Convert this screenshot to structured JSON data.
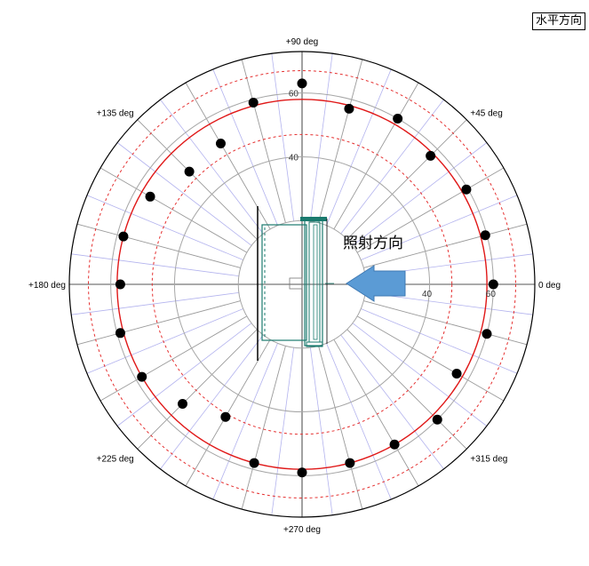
{
  "chart_data": {
    "type": "polar-scatter",
    "title": "水平方向",
    "direction_label": "照射方向",
    "angle_labels": [
      {
        "deg": 0,
        "label": "0 deg"
      },
      {
        "deg": 45,
        "label": "+45 deg"
      },
      {
        "deg": 90,
        "label": "+90 deg"
      },
      {
        "deg": 135,
        "label": "+135 deg"
      },
      {
        "deg": 180,
        "label": "+180 deg"
      },
      {
        "deg": 225,
        "label": "+225 deg"
      },
      {
        "deg": 270,
        "label": "+270 deg"
      },
      {
        "deg": 315,
        "label": "+315 deg"
      }
    ],
    "radial_ticks": [
      40,
      60
    ],
    "radial_range": [
      0,
      73
    ],
    "grid_circles": [
      20,
      40,
      60
    ],
    "reference_line": 58,
    "tolerance_lines": [
      47,
      67
    ],
    "radial_spoke_step_deg": 15,
    "minor_spoke_step_deg": 7.5,
    "series": [
      {
        "points": [
          {
            "angle": 0,
            "r": 60
          },
          {
            "angle": 15,
            "r": 59.5
          },
          {
            "angle": 30,
            "r": 59.5
          },
          {
            "angle": 45,
            "r": 57
          },
          {
            "angle": 60,
            "r": 60
          },
          {
            "angle": 75,
            "r": 57
          },
          {
            "angle": 90,
            "r": 63
          },
          {
            "angle": 105,
            "r": 59
          },
          {
            "angle": 120,
            "r": 51
          },
          {
            "angle": 135,
            "r": 50
          },
          {
            "angle": 150,
            "r": 55
          },
          {
            "angle": 165,
            "r": 58
          },
          {
            "angle": 180,
            "r": 57
          },
          {
            "angle": 195,
            "r": 59
          },
          {
            "angle": 210,
            "r": 58
          },
          {
            "angle": 225,
            "r": 53
          },
          {
            "angle": 240,
            "r": 48
          },
          {
            "angle": 255,
            "r": 58
          },
          {
            "angle": 270,
            "r": 59
          },
          {
            "angle": 285,
            "r": 58
          },
          {
            "angle": 300,
            "r": 58
          },
          {
            "angle": 315,
            "r": 60
          },
          {
            "angle": 330,
            "r": 56
          },
          {
            "angle": 345,
            "r": 60
          }
        ]
      }
    ]
  }
}
